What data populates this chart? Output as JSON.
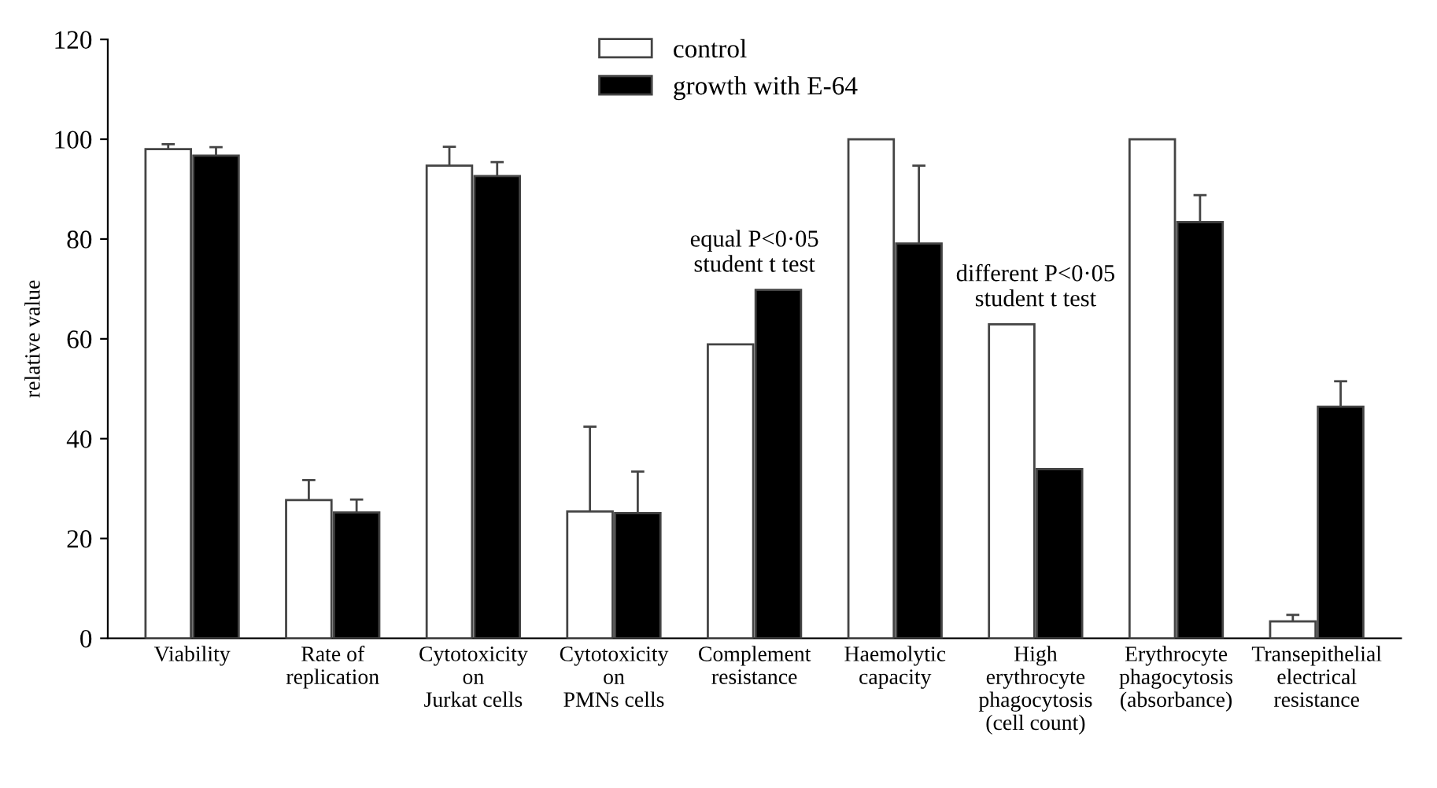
{
  "chart_data": {
    "type": "bar",
    "ylabel": "relative value",
    "categories": [
      "Viability",
      "Rate of\nreplication",
      "Cytotoxicity\non\nJurkat cells",
      "Cytotoxicity\non\nPMNs cells",
      "Complement\nresistance",
      "Haemolytic\ncapacity",
      "High\nerythrocyte\nphagocytosis\n(cell count)",
      "Erythrocyte\nphagocytosis\n(absorbance)",
      "Transepithelial\nelectrical\nresistance"
    ],
    "series": [
      {
        "name": "control",
        "color": "#ffffff",
        "values": [
          98,
          27.7,
          94.7,
          25.4,
          58.9,
          100,
          62.9,
          100,
          3.4
        ],
        "errors": [
          1,
          4,
          3.8,
          17,
          null,
          null,
          null,
          null,
          1.3
        ]
      },
      {
        "name": "growth with E-64",
        "color": "#000000",
        "values": [
          96.7,
          25.2,
          92.6,
          25.1,
          69.8,
          79.1,
          33.9,
          83.4,
          46.4
        ],
        "errors": [
          1.7,
          2.6,
          2.8,
          8.3,
          null,
          15.6,
          null,
          5.4,
          5.1
        ]
      }
    ],
    "ylim": [
      0,
      120
    ],
    "yticks": [
      0,
      20,
      40,
      60,
      80,
      100,
      120
    ],
    "grid": false,
    "legend": "top",
    "annotations": [
      {
        "text": "equal P<0·05\nstudent t test",
        "x": "Complement\nresistance",
        "y": 69.8
      },
      {
        "text": "different P<0·05\nstudent t test",
        "x": "High\nerythrocyte\nphagocytosis\n(cell count)",
        "y": 62.9
      }
    ]
  }
}
